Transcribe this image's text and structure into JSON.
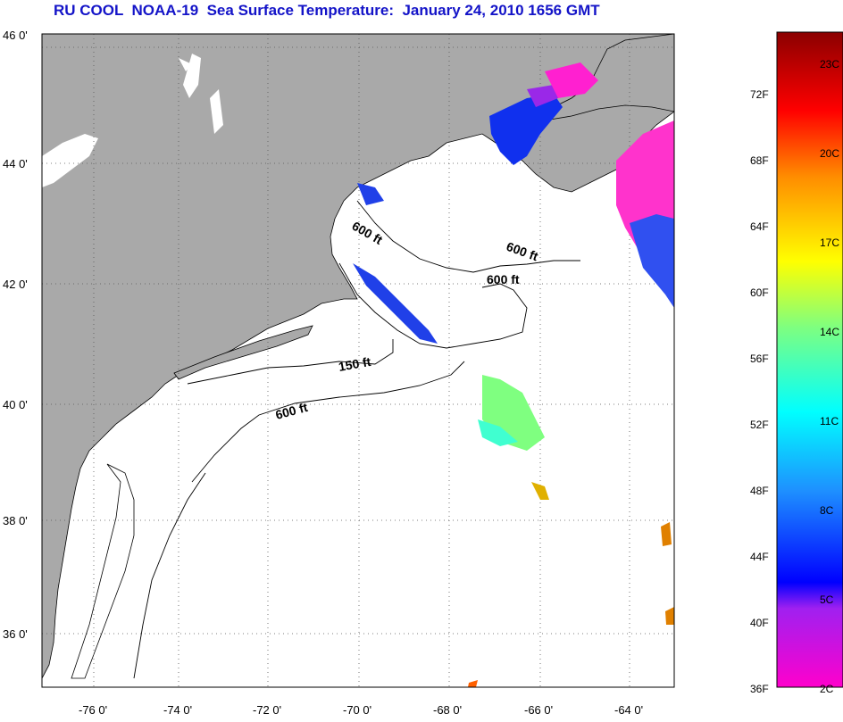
{
  "title": "RU COOL  NOAA-19  Sea Surface Temperature:  January 24, 2010 1656 GMT",
  "map": {
    "lon_labels": [
      "-76 0'",
      "-74 0'",
      "-72 0'",
      "-70 0'",
      "-68 0'",
      "-66 0'",
      "-64 0'"
    ],
    "lat_labels": [
      "46 0'",
      "44 0'",
      "42 0'",
      "40 0'",
      "38 0'",
      "36 0'"
    ],
    "contour_labels": [
      "600 ft",
      "600 ft",
      "600 ft",
      "150 ft",
      "600 ft"
    ],
    "colors": {
      "land": "#a9a9a9",
      "ocean": "#ffffff",
      "grid": "#000000"
    }
  },
  "colorbar": {
    "fahrenheit": [
      "72F",
      "68F",
      "64F",
      "60F",
      "56F",
      "52F",
      "48F",
      "44F",
      "40F",
      "36F"
    ],
    "celsius": [
      "23C",
      "20C",
      "17C",
      "14C",
      "11C",
      "8C",
      "5C",
      "2C"
    ],
    "gradient": [
      "#ff00cc",
      "#a020f0",
      "#0000ff",
      "#00bfff",
      "#00ffff",
      "#7fff00",
      "#ffff00",
      "#ff8c00",
      "#ff0000",
      "#8b0000"
    ]
  }
}
